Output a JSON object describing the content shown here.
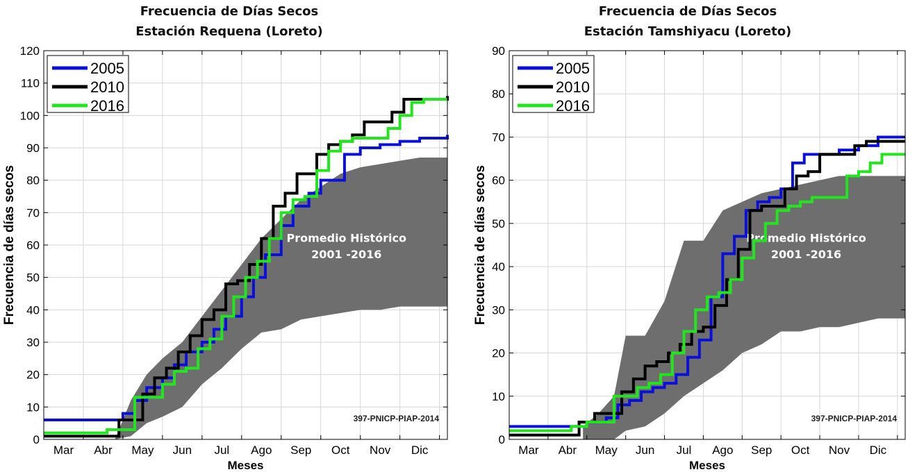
{
  "chart_data": [
    {
      "type": "line",
      "title": "Frecuencia de Días Secos",
      "subtitle": "Estación Requena (Loreto)",
      "xlabel": "Meses",
      "ylabel": "Frecuencia de días secos",
      "categories": [
        "Mar",
        "Abr",
        "May",
        "Jun",
        "Jul",
        "Ago",
        "Sep",
        "Oct",
        "Nov",
        "Dic"
      ],
      "x_unit": "month_index",
      "xlim": [
        2,
        12.2
      ],
      "ylim": [
        0,
        120
      ],
      "yticks": [
        0,
        10,
        20,
        30,
        40,
        50,
        60,
        70,
        80,
        90,
        100,
        110,
        120
      ],
      "grid": true,
      "legend_position": "top-left",
      "band": {
        "label": "Promedio Histórico",
        "label2": "2001 -2016",
        "color": "#6e6e6e",
        "x": [
          3.8,
          4.2,
          4.6,
          5.0,
          5.5,
          6.0,
          6.5,
          7.0,
          7.5,
          8.0,
          8.5,
          9.0,
          9.5,
          10.0,
          10.5,
          11.0,
          11.5,
          12.2
        ],
        "upper": [
          0,
          12,
          20,
          25,
          30,
          38,
          46,
          54,
          62,
          68,
          74,
          78,
          82,
          84,
          85,
          86,
          87,
          87
        ],
        "lower": [
          0,
          1,
          5,
          7,
          10,
          17,
          22,
          28,
          33,
          34,
          37,
          38,
          39,
          40,
          40,
          41,
          41,
          41
        ]
      },
      "series": [
        {
          "name": "2005",
          "color": "#0b10d8",
          "x": [
            2.0,
            3.8,
            4.0,
            4.3,
            4.6,
            5.0,
            5.3,
            5.6,
            6.0,
            6.3,
            6.6,
            7.0,
            7.3,
            7.6,
            8.0,
            8.3,
            8.7,
            9.0,
            9.3,
            9.6,
            10.0,
            10.5,
            11.0,
            11.5,
            12.2
          ],
          "values": [
            6,
            6,
            8,
            12,
            16,
            19,
            23,
            27,
            30,
            34,
            38,
            44,
            50,
            57,
            66,
            72,
            76,
            80,
            80,
            88,
            90,
            91,
            92,
            93,
            94
          ]
        },
        {
          "name": "2010",
          "color": "#000000",
          "x": [
            2.0,
            3.6,
            3.9,
            4.2,
            4.5,
            4.8,
            5.1,
            5.4,
            5.7,
            6.0,
            6.3,
            6.6,
            6.9,
            7.2,
            7.5,
            7.8,
            8.1,
            8.4,
            8.6,
            8.9,
            9.2,
            9.5,
            9.8,
            10.1,
            10.5,
            10.8,
            11.1,
            11.5,
            12.2
          ],
          "values": [
            1,
            1,
            6,
            6,
            14,
            19,
            22,
            27,
            32,
            37,
            40,
            48,
            49,
            54,
            62,
            72,
            76,
            82,
            82,
            88,
            91,
            92,
            94,
            98,
            98,
            101,
            105,
            105,
            106
          ]
        },
        {
          "name": "2016",
          "color": "#22e51f",
          "x": [
            2.0,
            3.6,
            4.0,
            4.3,
            4.6,
            5.0,
            5.3,
            5.6,
            5.9,
            6.2,
            6.5,
            6.8,
            7.1,
            7.4,
            7.7,
            8.0,
            8.3,
            8.6,
            8.9,
            9.2,
            9.5,
            9.8,
            10.1,
            10.4,
            10.7,
            11.0,
            11.3,
            11.6,
            12.2
          ],
          "values": [
            2,
            3,
            3,
            13,
            13,
            17,
            21,
            22,
            28,
            31,
            38,
            44,
            50,
            55,
            62,
            70,
            74,
            75,
            83,
            89,
            92,
            93,
            93,
            93,
            96,
            100,
            104,
            105,
            105
          ]
        }
      ],
      "annotation": "397-PNICP-PIAP-2014"
    },
    {
      "type": "line",
      "title": "Frecuencia de Días Secos",
      "subtitle": "Estación Tamshiyacu (Loreto)",
      "xlabel": "Meses",
      "ylabel": "Frecuencia de días secos",
      "categories": [
        "Mar",
        "Abr",
        "May",
        "Jun",
        "Jul",
        "Ago",
        "Sep",
        "Oct",
        "Nov",
        "Dic"
      ],
      "x_unit": "month_index",
      "xlim": [
        2,
        12.2
      ],
      "ylim": [
        0,
        90
      ],
      "yticks": [
        0,
        10,
        20,
        30,
        40,
        50,
        60,
        70,
        80,
        90
      ],
      "grid": true,
      "legend_position": "top-left",
      "band": {
        "label": "Promedio Histórico",
        "label2": "2001 -2016",
        "color": "#6e6e6e",
        "x": [
          3.9,
          4.3,
          4.7,
          5.0,
          5.5,
          6.0,
          6.5,
          7.0,
          7.5,
          8.0,
          8.5,
          9.0,
          9.5,
          10.0,
          10.5,
          11.0,
          11.5,
          12.2
        ],
        "upper": [
          3,
          6,
          10,
          24,
          24,
          32,
          46,
          46,
          53,
          55,
          57,
          58,
          59,
          60,
          61,
          61,
          61,
          61
        ],
        "lower": [
          0,
          0,
          0,
          2,
          3,
          6,
          10,
          13,
          16,
          20,
          22,
          25,
          25,
          26,
          26,
          27,
          28,
          28
        ]
      },
      "series": [
        {
          "name": "2005",
          "color": "#0b10d8",
          "x": [
            2.0,
            3.8,
            4.2,
            4.5,
            4.8,
            5.1,
            5.4,
            5.7,
            6.0,
            6.3,
            6.6,
            6.9,
            7.2,
            7.5,
            7.8,
            8.1,
            8.4,
            8.7,
            9.0,
            9.3,
            9.6,
            10.0,
            10.5,
            11.0,
            11.5,
            12.2
          ],
          "values": [
            3,
            4,
            4,
            5,
            8,
            9,
            11,
            12,
            13,
            15,
            19,
            23,
            33,
            43,
            47,
            53,
            55,
            56,
            58,
            64,
            66,
            66,
            67,
            68,
            70,
            70
          ]
        },
        {
          "name": "2010",
          "color": "#000000",
          "x": [
            2.0,
            3.6,
            3.8,
            4.2,
            4.6,
            4.9,
            5.2,
            5.5,
            5.8,
            6.1,
            6.4,
            6.7,
            7.0,
            7.3,
            7.6,
            7.9,
            8.2,
            8.5,
            8.8,
            9.1,
            9.4,
            9.7,
            10.0,
            10.3,
            10.6,
            10.9,
            11.2,
            11.5,
            12.2
          ],
          "values": [
            1,
            1,
            4,
            6,
            6,
            11,
            14,
            17,
            18,
            20,
            22,
            25,
            26,
            31,
            37,
            44,
            53,
            54,
            54,
            58,
            61,
            62,
            66,
            66,
            66,
            68,
            69,
            69,
            69
          ]
        },
        {
          "name": "2016",
          "color": "#22e51f",
          "x": [
            2.0,
            3.6,
            4.0,
            4.4,
            4.7,
            5.0,
            5.3,
            5.6,
            5.9,
            6.2,
            6.5,
            6.8,
            7.1,
            7.4,
            7.7,
            8.0,
            8.3,
            8.6,
            8.9,
            9.2,
            9.5,
            9.8,
            10.1,
            10.4,
            10.7,
            11.0,
            11.3,
            11.6,
            12.2
          ],
          "values": [
            2,
            3,
            4,
            4,
            10,
            10,
            12,
            13,
            15,
            20,
            25,
            30,
            33,
            34,
            37,
            42,
            46,
            50,
            53,
            54,
            55,
            56,
            56,
            56,
            61,
            62,
            64,
            66,
            66
          ]
        }
      ],
      "annotation": "397-PNICP-PIAP-2014"
    }
  ]
}
